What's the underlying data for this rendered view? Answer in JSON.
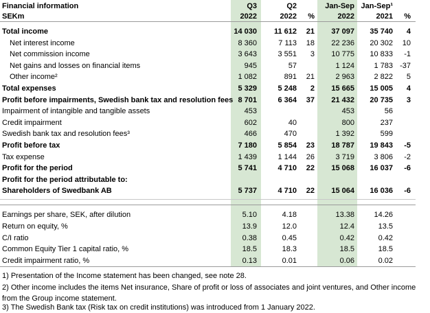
{
  "header": {
    "title": "Financial information",
    "unit": "SEKm",
    "columns": [
      {
        "period": "Q3",
        "year": "2022"
      },
      {
        "period": "Q2",
        "year": "2022"
      },
      {
        "year": "%"
      },
      {
        "period": "Jan-Sep",
        "year": "2022"
      },
      {
        "period": "Jan-Sep¹",
        "year": "2021"
      },
      {
        "year": "%"
      }
    ]
  },
  "table": {
    "rows": [
      {
        "label": "Total income",
        "bold": true,
        "cells": [
          "14 030",
          "11 612",
          "21",
          "37 097",
          "35 740",
          "4"
        ]
      },
      {
        "label": "Net interest income",
        "indent": true,
        "cells": [
          "8 360",
          "7 113",
          "18",
          "22 236",
          "20 302",
          "10"
        ]
      },
      {
        "label": "Net commission income",
        "indent": true,
        "cells": [
          "3 643",
          "3 551",
          "3",
          "10 775",
          "10 833",
          "-1"
        ]
      },
      {
        "label": "Net gains and losses on financial items",
        "indent": true,
        "cells": [
          "945",
          "57",
          null,
          "1 124",
          "1 783",
          "-37"
        ]
      },
      {
        "label": "Other income²",
        "indent": true,
        "cells": [
          "1 082",
          "891",
          "21",
          "2 963",
          "2 822",
          "5"
        ]
      },
      {
        "label": "Total expenses",
        "bold": true,
        "cells": [
          "5 329",
          "5 248",
          "2",
          "15 665",
          "15 005",
          "4"
        ]
      },
      {
        "label": "Profit before impairments, Swedish bank tax and resolution fees",
        "bold": true,
        "cells": [
          "8 701",
          "6 364",
          "37",
          "21 432",
          "20 735",
          "3"
        ]
      },
      {
        "label": "Impairment of intangible and tangible assets",
        "cells": [
          "453",
          null,
          null,
          "453",
          "56",
          null
        ]
      },
      {
        "label": "Credit impairment",
        "cells": [
          "602",
          "40",
          null,
          "800",
          "237",
          null
        ]
      },
      {
        "label": "Swedish bank tax and resolution fees³",
        "cells": [
          "466",
          "470",
          null,
          "1 392",
          "599",
          null
        ]
      },
      {
        "label": "Profit before tax",
        "bold": true,
        "cells": [
          "7 180",
          "5 854",
          "23",
          "18 787",
          "19 843",
          "-5"
        ]
      },
      {
        "label": "Tax expense",
        "cells": [
          "1 439",
          "1 144",
          "26",
          "3 719",
          "3 806",
          "-2"
        ]
      },
      {
        "label": "Profit for the period",
        "bold": true,
        "cells": [
          "5 741",
          "4 710",
          "22",
          "15 068",
          "16 037",
          "-6"
        ]
      },
      {
        "label": "Profit for the period attributable to:",
        "bold": true,
        "cells": [
          null,
          null,
          null,
          null,
          null,
          null
        ]
      },
      {
        "label": "Shareholders of Swedbank AB",
        "bold": true,
        "cells": [
          "5 737",
          "4 710",
          "22",
          "15 064",
          "16 036",
          "-6"
        ]
      }
    ],
    "ratios": [
      {
        "label": "Earnings per share, SEK, after dilution",
        "cells": [
          "5.10",
          "4.18",
          null,
          "13.38",
          "14.26",
          null
        ]
      },
      {
        "label": "Return on equity, %",
        "cells": [
          "13.9",
          "12.0",
          null,
          "12.4",
          "13.5",
          null
        ]
      },
      {
        "label": "C/I ratio",
        "cells": [
          "0.38",
          "0.45",
          null,
          "0.42",
          "0.42",
          null
        ]
      },
      {
        "label": "Common Equity Tier 1 capital ratio, %",
        "cells": [
          "18.5",
          "18.3",
          null,
          "18.5",
          "18.5",
          null
        ]
      },
      {
        "label": "Credit impairment ratio, %",
        "cells": [
          "0.13",
          "0.01",
          null,
          "0.06",
          "0.02",
          null
        ]
      }
    ]
  },
  "footnotes": [
    "1) Presentation of the Income statement has been changed, see note 28.",
    "2) Other income includes the items Net insurance, Share of profit or loss of associates and joint ventures, and Other income from the Group income statement.",
    "3) The Swedish Bank tax (Risk tax on credit institutions) was introduced from 1 January 2022."
  ]
}
